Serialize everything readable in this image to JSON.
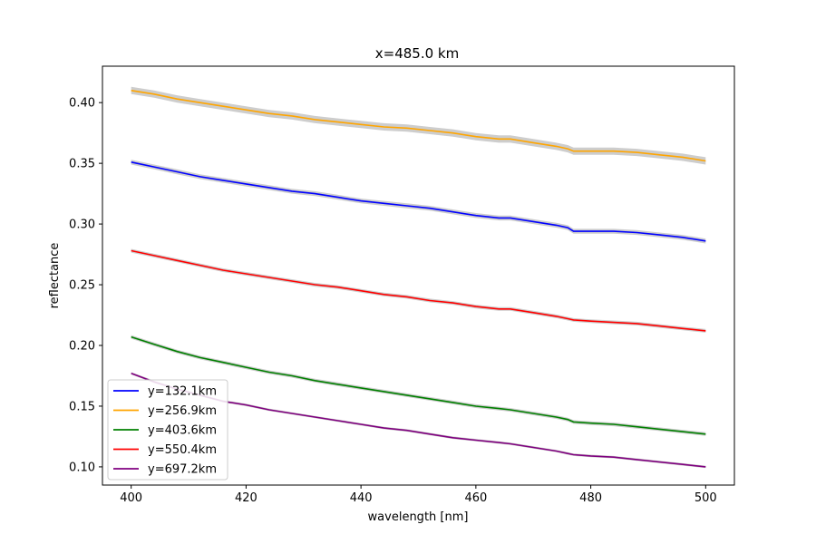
{
  "chart_data": {
    "type": "line",
    "title": "x=485.0 km",
    "xlabel": "wavelength [nm]",
    "ylabel": "reflectance",
    "xlim": [
      395,
      505
    ],
    "ylim": [
      0.085,
      0.43
    ],
    "xticks": [
      400,
      420,
      440,
      460,
      480,
      500
    ],
    "xtick_labels": [
      "400",
      "420",
      "440",
      "460",
      "480",
      "500"
    ],
    "yticks": [
      0.1,
      0.15,
      0.2,
      0.25,
      0.3,
      0.35,
      0.4
    ],
    "ytick_labels": [
      "0.10",
      "0.15",
      "0.20",
      "0.25",
      "0.30",
      "0.35",
      "0.40"
    ],
    "grid": false,
    "legend_position": "lower-left",
    "band_color": "#c8c8c8",
    "x": [
      400,
      404,
      408,
      412,
      416,
      420,
      424,
      428,
      432,
      436,
      440,
      444,
      448,
      452,
      456,
      460,
      464,
      466,
      470,
      474,
      476,
      477,
      480,
      484,
      488,
      492,
      496,
      500
    ],
    "series": [
      {
        "name": "y=132.1km",
        "color": "#0000ff",
        "band_halfwidth": 0.002,
        "values": [
          0.351,
          0.347,
          0.343,
          0.339,
          0.336,
          0.333,
          0.33,
          0.327,
          0.325,
          0.322,
          0.319,
          0.317,
          0.315,
          0.313,
          0.31,
          0.307,
          0.305,
          0.305,
          0.302,
          0.299,
          0.297,
          0.294,
          0.294,
          0.294,
          0.293,
          0.291,
          0.289,
          0.286
        ]
      },
      {
        "name": "y=256.9km",
        "color": "#ffa500",
        "band_halfwidth": 0.003,
        "values": [
          0.41,
          0.407,
          0.403,
          0.4,
          0.397,
          0.394,
          0.391,
          0.389,
          0.386,
          0.384,
          0.382,
          0.38,
          0.379,
          0.377,
          0.375,
          0.372,
          0.37,
          0.37,
          0.367,
          0.364,
          0.362,
          0.36,
          0.36,
          0.36,
          0.359,
          0.357,
          0.355,
          0.352
        ]
      },
      {
        "name": "y=403.6km",
        "color": "#008000",
        "band_halfwidth": 0.0015,
        "values": [
          0.207,
          0.201,
          0.195,
          0.19,
          0.186,
          0.182,
          0.178,
          0.175,
          0.171,
          0.168,
          0.165,
          0.162,
          0.159,
          0.156,
          0.153,
          0.15,
          0.148,
          0.147,
          0.144,
          0.141,
          0.139,
          0.137,
          0.136,
          0.135,
          0.133,
          0.131,
          0.129,
          0.127
        ]
      },
      {
        "name": "y=550.4km",
        "color": "#ff0000",
        "band_halfwidth": 0.0015,
        "values": [
          0.278,
          0.274,
          0.27,
          0.266,
          0.262,
          0.259,
          0.256,
          0.253,
          0.25,
          0.248,
          0.245,
          0.242,
          0.24,
          0.237,
          0.235,
          0.232,
          0.23,
          0.23,
          0.227,
          0.224,
          0.222,
          0.221,
          0.22,
          0.219,
          0.218,
          0.216,
          0.214,
          0.212
        ]
      },
      {
        "name": "y=697.2km",
        "color": "#800080",
        "band_halfwidth": 0.001,
        "values": [
          0.177,
          0.17,
          0.164,
          0.159,
          0.154,
          0.151,
          0.147,
          0.144,
          0.141,
          0.138,
          0.135,
          0.132,
          0.13,
          0.127,
          0.124,
          0.122,
          0.12,
          0.119,
          0.116,
          0.113,
          0.111,
          0.11,
          0.109,
          0.108,
          0.106,
          0.104,
          0.102,
          0.1
        ]
      }
    ]
  }
}
